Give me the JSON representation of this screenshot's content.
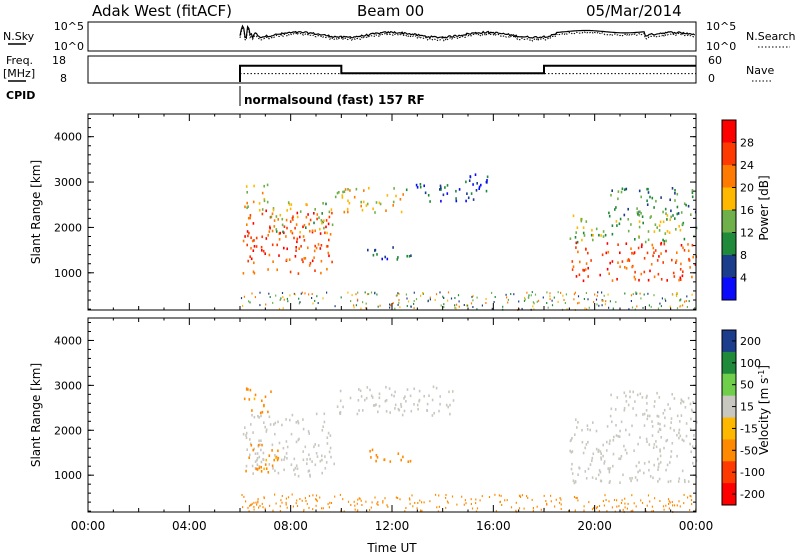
{
  "header": {
    "station": "Adak West (fitACF)",
    "beam": "Beam 00",
    "date": "05/Mar/2014"
  },
  "chart_data": [
    {
      "type": "line",
      "panel": "noise",
      "left_label": "N.Sky",
      "right_label": "N.Search",
      "y_ticks_left": [
        "10^5",
        "10^0"
      ],
      "y_ticks_right": [
        "10^5",
        "10^0"
      ]
    },
    {
      "type": "line",
      "panel": "frequency",
      "left_label_top": "Freq.",
      "left_label_bottom": "[MHz]",
      "right_label": "Nave",
      "y_ticks_left": [
        "18",
        "8"
      ],
      "y_ticks_right": [
        "60",
        "0"
      ],
      "ylim_left": [
        8,
        18
      ],
      "ylim_right": [
        0,
        60
      ],
      "freq_steps": [
        {
          "start_h": 6.0,
          "end_h": 10.0,
          "mhz": 14.5
        },
        {
          "start_h": 10.0,
          "end_h": 18.0,
          "mhz": 11.5
        },
        {
          "start_h": 18.0,
          "end_h": 24.0,
          "mhz": 14.5
        }
      ],
      "nave": 20
    },
    {
      "type": "table",
      "panel": "cpid",
      "label": "CPID",
      "start_h": 6.0,
      "program": "normalsound (fast) 157 RF"
    },
    {
      "type": "heatmap",
      "panel": "power",
      "ylabel": "Slant Range [km]",
      "y_ticks": [
        "1000",
        "2000",
        "3000",
        "4000"
      ],
      "ylim": [
        180,
        4500
      ],
      "xlim": [
        0,
        24
      ],
      "colorbar_label": "Power [dB]",
      "colorbar_ticks": [
        "28",
        "24",
        "20",
        "16",
        "12",
        "8",
        "4"
      ],
      "colorbar_colors": [
        "#ff0000",
        "#ff3a00",
        "#ff7a00",
        "#ffb800",
        "#6fb04a",
        "#1f8a3a",
        "#1c3c8c",
        "#0a0aff"
      ],
      "regions": [
        {
          "x0": 6.1,
          "x1": 9.7,
          "y0": 1000,
          "y1": 2400,
          "v": 26
        },
        {
          "x0": 7.2,
          "x1": 9.7,
          "y0": 1900,
          "y1": 2600,
          "v": 16
        },
        {
          "x0": 9.7,
          "x1": 12.5,
          "y0": 2350,
          "y1": 2900,
          "v": 18
        },
        {
          "x0": 12.5,
          "x1": 14.5,
          "y0": 2600,
          "y1": 3000,
          "v": 6
        },
        {
          "x0": 14.5,
          "x1": 16.0,
          "y0": 2600,
          "y1": 3200,
          "v": 5
        },
        {
          "x0": 11.0,
          "x1": 12.8,
          "y0": 1300,
          "y1": 1600,
          "v": 7
        },
        {
          "x0": 6.1,
          "x1": 7.2,
          "y0": 2400,
          "y1": 3000,
          "v": 18
        },
        {
          "x0": 19.0,
          "x1": 24.0,
          "y0": 850,
          "y1": 1700,
          "v": 26
        },
        {
          "x0": 19.0,
          "x1": 24.0,
          "y0": 1700,
          "y1": 2300,
          "v": 14
        },
        {
          "x0": 20.5,
          "x1": 24.0,
          "y0": 2300,
          "y1": 2900,
          "v": 10
        }
      ]
    },
    {
      "type": "heatmap",
      "panel": "velocity",
      "xlabel": "Time UT",
      "ylabel": "Slant Range [km]",
      "y_ticks": [
        "1000",
        "2000",
        "3000",
        "4000"
      ],
      "x_ticks": [
        "00:00",
        "04:00",
        "08:00",
        "12:00",
        "16:00",
        "20:00",
        "00:00"
      ],
      "ylim": [
        180,
        4500
      ],
      "xlim": [
        0,
        24
      ],
      "colorbar_label": "Velocity [m s",
      "colorbar_label_exp": "-1",
      "colorbar_ticks": [
        "200",
        "100",
        "50",
        "15",
        "-15",
        "-50",
        "-100",
        "-200"
      ],
      "colorbar_colors": [
        "#1c3c8c",
        "#1f8a3a",
        "#6fcf4a",
        "#c8c8c0",
        "#ffb800",
        "#ff8a00",
        "#ff3a00",
        "#ff0000"
      ],
      "regions": [
        {
          "x0": 6.1,
          "x1": 9.7,
          "y0": 1000,
          "y1": 2400,
          "v": 0
        },
        {
          "x0": 6.1,
          "x1": 7.5,
          "y0": 1000,
          "y1": 1700,
          "v": -40
        },
        {
          "x0": 6.1,
          "x1": 7.2,
          "y0": 2400,
          "y1": 3000,
          "v": -40
        },
        {
          "x0": 9.7,
          "x1": 14.5,
          "y0": 2350,
          "y1": 3000,
          "v": 0
        },
        {
          "x0": 11.0,
          "x1": 12.8,
          "y0": 1300,
          "y1": 1600,
          "v": -40
        },
        {
          "x0": 19.0,
          "x1": 24.0,
          "y0": 850,
          "y1": 2300,
          "v": 0
        },
        {
          "x0": 20.5,
          "x1": 24.0,
          "y0": 2300,
          "y1": 2900,
          "v": 0
        }
      ]
    }
  ]
}
